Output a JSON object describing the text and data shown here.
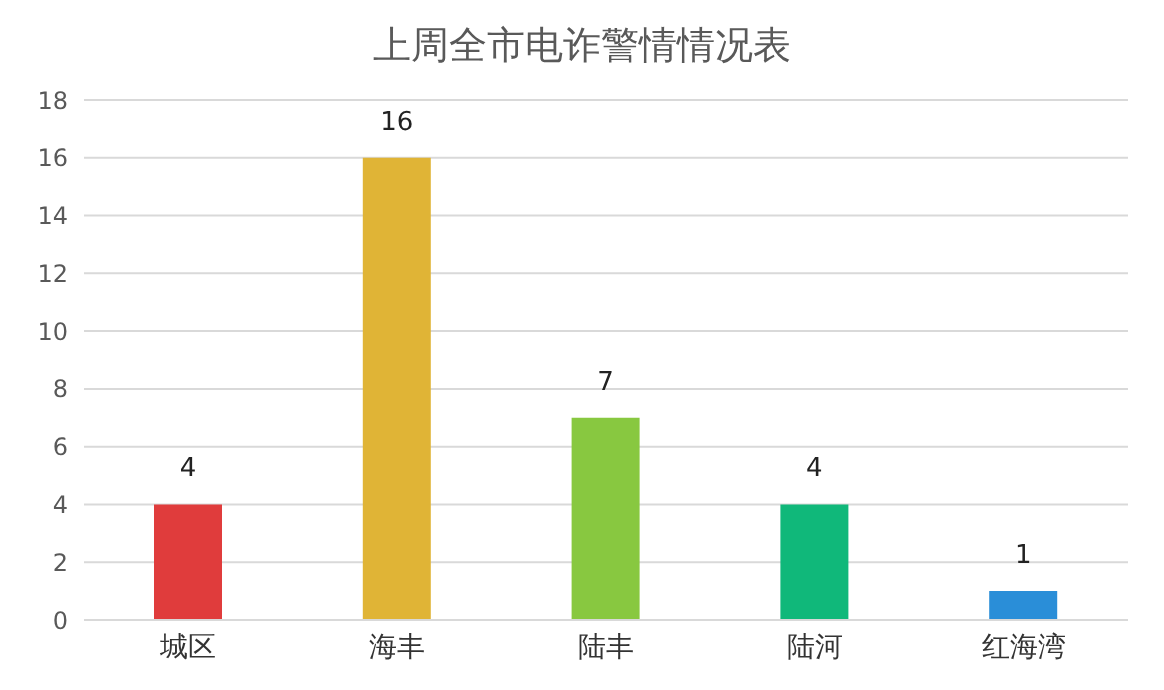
{
  "chart_data": {
    "type": "bar",
    "title": "上周全市电诈警情情况表",
    "categories": [
      "城区",
      "海丰",
      "陆丰",
      "陆河",
      "红海湾"
    ],
    "values": [
      4,
      16,
      7,
      4,
      1
    ],
    "colors": [
      "#e03c3c",
      "#e0b436",
      "#88c840",
      "#10b87a",
      "#2a8ed8"
    ],
    "ylim": [
      0,
      18
    ],
    "yticks": [
      0,
      2,
      4,
      6,
      8,
      10,
      12,
      14,
      16,
      18
    ],
    "grid": "y",
    "data_labels": true
  }
}
